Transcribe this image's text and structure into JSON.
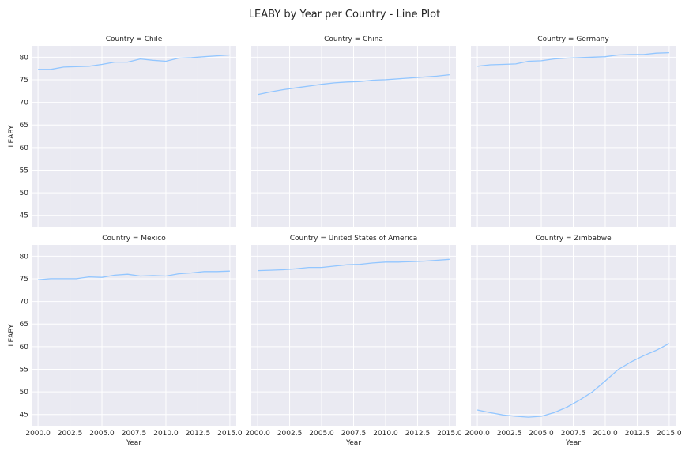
{
  "chart_data": {
    "type": "line",
    "title": "LEABY by Year per Country - Line Plot",
    "xlabel": "Year",
    "ylabel": "LEABY",
    "xlim": [
      1999.5,
      2015.5
    ],
    "ylim": [
      42.5,
      82.5
    ],
    "xticks": [
      2000,
      2002.5,
      2005,
      2007.5,
      2010,
      2012.5,
      2015
    ],
    "xtick_labels": [
      "2000.0",
      "2002.5",
      "2005.0",
      "2007.5",
      "2010.0",
      "2012.5",
      "2015.0"
    ],
    "yticks": [
      45,
      50,
      55,
      60,
      65,
      70,
      75,
      80
    ],
    "ytick_labels": [
      "45",
      "50",
      "55",
      "60",
      "65",
      "70",
      "75",
      "80"
    ],
    "grid": true,
    "line_color": "#92c6ff",
    "x": [
      2000,
      2001,
      2002,
      2003,
      2004,
      2005,
      2006,
      2007,
      2008,
      2009,
      2010,
      2011,
      2012,
      2013,
      2014,
      2015
    ],
    "panels": [
      {
        "label": "Country = Chile",
        "country": "Chile",
        "values": [
          77.3,
          77.3,
          77.8,
          77.9,
          78.0,
          78.4,
          78.9,
          78.9,
          79.6,
          79.3,
          79.1,
          79.8,
          79.9,
          80.1,
          80.3,
          80.5
        ]
      },
      {
        "label": "Country = China",
        "country": "China",
        "values": [
          71.7,
          72.3,
          72.8,
          73.2,
          73.6,
          74.0,
          74.3,
          74.5,
          74.6,
          74.9,
          75.0,
          75.2,
          75.4,
          75.6,
          75.8,
          76.1
        ]
      },
      {
        "label": "Country = Germany",
        "country": "Germany",
        "values": [
          78.0,
          78.3,
          78.4,
          78.5,
          79.1,
          79.2,
          79.6,
          79.8,
          79.9,
          80.0,
          80.1,
          80.5,
          80.6,
          80.6,
          80.9,
          81.0
        ]
      },
      {
        "label": "Country = Mexico",
        "country": "Mexico",
        "values": [
          74.8,
          75.0,
          75.0,
          75.0,
          75.4,
          75.3,
          75.8,
          76.0,
          75.6,
          75.7,
          75.6,
          76.1,
          76.3,
          76.6,
          76.6,
          76.7
        ]
      },
      {
        "label": "Country = United States of America",
        "country": "United States of America",
        "values": [
          76.8,
          76.9,
          77.0,
          77.2,
          77.5,
          77.5,
          77.8,
          78.1,
          78.2,
          78.5,
          78.7,
          78.7,
          78.8,
          78.9,
          79.1,
          79.3
        ]
      },
      {
        "label": "Country = Zimbabwe",
        "country": "Zimbabwe",
        "values": [
          46.0,
          45.4,
          44.9,
          44.6,
          44.4,
          44.6,
          45.4,
          46.6,
          48.2,
          50.0,
          52.4,
          54.9,
          56.6,
          58.0,
          59.2,
          60.7
        ]
      }
    ]
  }
}
